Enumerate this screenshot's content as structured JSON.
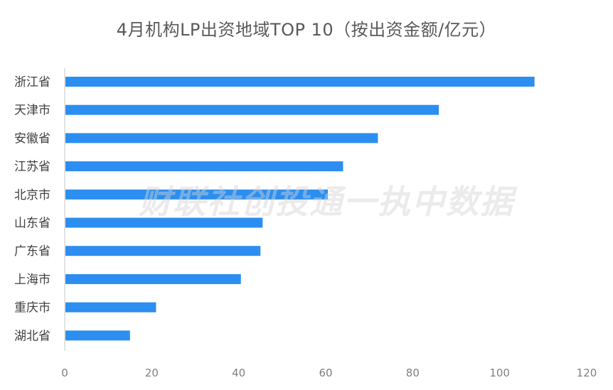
{
  "chart_data": {
    "type": "bar",
    "orientation": "horizontal",
    "title": "4月机构LP出资地域TOP 10（按出资金额/亿元）",
    "categories": [
      "浙江省",
      "天津市",
      "安徽省",
      "江苏省",
      "北京市",
      "山东省",
      "广东省",
      "上海市",
      "重庆市",
      "湖北省"
    ],
    "values": [
      108,
      86,
      72,
      64,
      60.5,
      45.5,
      45,
      40.5,
      21,
      15
    ],
    "xlim": [
      0,
      120
    ],
    "xticks": [
      0,
      20,
      40,
      60,
      80,
      100,
      120
    ],
    "bar_color": "#2b8ef0",
    "axis_color": "#d9d9d9",
    "grid": false
  },
  "watermark": "财联社创投通一执中数据"
}
